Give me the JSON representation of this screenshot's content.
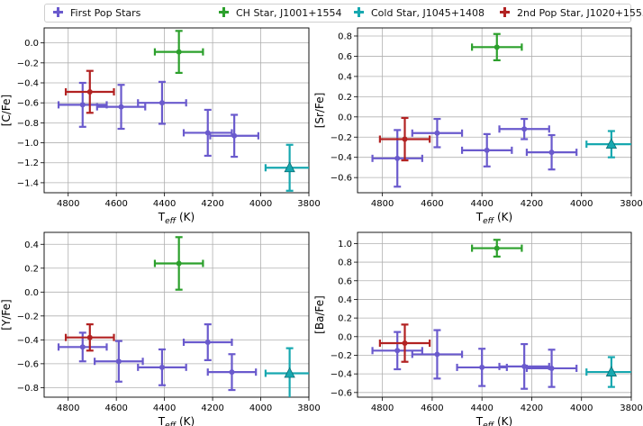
{
  "legend": [
    {
      "label": "First Pop Stars",
      "color": "#6a5acd"
    },
    {
      "label": "CH Star, J1001+1554",
      "color": "#2ca02c"
    },
    {
      "label": "Cold Star, J1045+1408",
      "color": "#17a8b0"
    },
    {
      "label": "2nd Pop Star, J1020+1555",
      "color": "#b22222"
    }
  ],
  "chart_data": [
    {
      "type": "scatter",
      "ylabel": "[C/Fe]",
      "xlabel": "T_eff (K)",
      "xlim": [
        4900,
        3800
      ],
      "ylim": [
        -1.5,
        0.15
      ],
      "xticks": [
        4800,
        4600,
        4400,
        4200,
        4000,
        3800
      ],
      "yticks": [
        0.0,
        -0.2,
        -0.4,
        -0.6,
        -0.8,
        -1.0,
        -1.2,
        -1.4
      ],
      "ytick_labels": [
        "0.0",
        "−0.2",
        "−0.4",
        "−0.6",
        "−0.8",
        "−1.0",
        "−1.2",
        "−1.4"
      ],
      "grid": true,
      "series": [
        {
          "name": "First Pop Stars",
          "color": "#6a5acd",
          "marker": "circle",
          "points": [
            {
              "x": 4740,
              "y": -0.62,
              "xerr": 100,
              "yerr": 0.22
            },
            {
              "x": 4580,
              "y": -0.64,
              "xerr": 100,
              "yerr": 0.22
            },
            {
              "x": 4410,
              "y": -0.6,
              "xerr": 100,
              "yerr": 0.21
            },
            {
              "x": 4220,
              "y": -0.9,
              "xerr": 100,
              "yerr": 0.23
            },
            {
              "x": 4110,
              "y": -0.93,
              "xerr": 100,
              "yerr": 0.21
            }
          ]
        },
        {
          "name": "CH Star, J1001+1554",
          "color": "#2ca02c",
          "marker": "circle",
          "points": [
            {
              "x": 4340,
              "y": -0.09,
              "xerr": 100,
              "yerr": 0.21
            }
          ]
        },
        {
          "name": "Cold Star, J1045+1408",
          "color": "#17a8b0",
          "marker": "triangle",
          "points": [
            {
              "x": 3880,
              "y": -1.25,
              "xerr": 100,
              "yerr": 0.23
            }
          ]
        },
        {
          "name": "2nd Pop Star, J1020+1555",
          "color": "#b22222",
          "marker": "circle",
          "points": [
            {
              "x": 4710,
              "y": -0.49,
              "xerr": 100,
              "yerr": 0.21
            }
          ]
        }
      ]
    },
    {
      "type": "scatter",
      "ylabel": "[Sr/Fe]",
      "xlabel": "T_eff (K)",
      "xlim": [
        4900,
        3800
      ],
      "ylim": [
        -0.75,
        0.88
      ],
      "xticks": [
        4800,
        4600,
        4400,
        4200,
        4000,
        3800
      ],
      "yticks": [
        0.8,
        0.6,
        0.4,
        0.2,
        0.0,
        -0.2,
        -0.4,
        -0.6
      ],
      "ytick_labels": [
        "0.8",
        "0.6",
        "0.4",
        "0.2",
        "0.0",
        "−0.2",
        "−0.4",
        "−0.6"
      ],
      "grid": true,
      "series": [
        {
          "name": "First Pop Stars",
          "color": "#6a5acd",
          "marker": "circle",
          "points": [
            {
              "x": 4740,
              "y": -0.41,
              "xerr": 100,
              "yerr": 0.28
            },
            {
              "x": 4580,
              "y": -0.16,
              "xerr": 100,
              "yerr": 0.14
            },
            {
              "x": 4380,
              "y": -0.33,
              "xerr": 100,
              "yerr": 0.16
            },
            {
              "x": 4230,
              "y": -0.12,
              "xerr": 100,
              "yerr": 0.1
            },
            {
              "x": 4120,
              "y": -0.35,
              "xerr": 100,
              "yerr": 0.17
            }
          ]
        },
        {
          "name": "CH Star, J1001+1554",
          "color": "#2ca02c",
          "marker": "circle",
          "points": [
            {
              "x": 4340,
              "y": 0.69,
              "xerr": 100,
              "yerr": 0.13
            }
          ]
        },
        {
          "name": "Cold Star, J1045+1408",
          "color": "#17a8b0",
          "marker": "triangle",
          "points": [
            {
              "x": 3880,
              "y": -0.27,
              "xerr": 100,
              "yerr": 0.13
            }
          ]
        },
        {
          "name": "2nd Pop Star, J1020+1555",
          "color": "#b22222",
          "marker": "circle",
          "points": [
            {
              "x": 4710,
              "y": -0.22,
              "xerr": 100,
              "yerr": 0.21
            }
          ]
        }
      ]
    },
    {
      "type": "scatter",
      "ylabel": "[Y/Fe]",
      "xlabel": "T_eff (K)",
      "xlim": [
        4900,
        3800
      ],
      "ylim": [
        -0.88,
        0.5
      ],
      "xticks": [
        4800,
        4600,
        4400,
        4200,
        4000,
        3800
      ],
      "yticks": [
        0.4,
        0.2,
        0.0,
        -0.2,
        -0.4,
        -0.6,
        -0.8
      ],
      "ytick_labels": [
        "0.4",
        "0.2",
        "0.0",
        "−0.2",
        "−0.4",
        "−0.6",
        "−0.8"
      ],
      "grid": true,
      "series": [
        {
          "name": "First Pop Stars",
          "color": "#6a5acd",
          "marker": "circle",
          "points": [
            {
              "x": 4740,
              "y": -0.46,
              "xerr": 100,
              "yerr": 0.12
            },
            {
              "x": 4590,
              "y": -0.58,
              "xerr": 100,
              "yerr": 0.17
            },
            {
              "x": 4410,
              "y": -0.63,
              "xerr": 100,
              "yerr": 0.15
            },
            {
              "x": 4220,
              "y": -0.42,
              "xerr": 100,
              "yerr": 0.15
            },
            {
              "x": 4120,
              "y": -0.67,
              "xerr": 100,
              "yerr": 0.15
            }
          ]
        },
        {
          "name": "CH Star, J1001+1554",
          "color": "#2ca02c",
          "marker": "circle",
          "points": [
            {
              "x": 4340,
              "y": 0.24,
              "xerr": 100,
              "yerr": 0.22
            }
          ]
        },
        {
          "name": "Cold Star, J1045+1408",
          "color": "#17a8b0",
          "marker": "triangle",
          "points": [
            {
              "x": 3880,
              "y": -0.68,
              "xerr": 100,
              "yerr": 0.21
            }
          ]
        },
        {
          "name": "2nd Pop Star, J1020+1555",
          "color": "#b22222",
          "marker": "circle",
          "points": [
            {
              "x": 4710,
              "y": -0.38,
              "xerr": 100,
              "yerr": 0.11
            }
          ]
        }
      ]
    },
    {
      "type": "scatter",
      "ylabel": "[Ba/Fe]",
      "xlabel": "T_eff (K)",
      "xlim": [
        4900,
        3800
      ],
      "ylim": [
        -0.65,
        1.12
      ],
      "xticks": [
        4800,
        4600,
        4400,
        4200,
        4000,
        3800
      ],
      "yticks": [
        1.0,
        0.8,
        0.6,
        0.4,
        0.2,
        0.0,
        -0.2,
        -0.4,
        -0.6
      ],
      "ytick_labels": [
        "1.0",
        "0.8",
        "0.6",
        "0.4",
        "0.2",
        "0.0",
        "−0.2",
        "−0.4",
        "−0.6"
      ],
      "grid": true,
      "series": [
        {
          "name": "First Pop Stars",
          "color": "#6a5acd",
          "marker": "circle",
          "points": [
            {
              "x": 4740,
              "y": -0.15,
              "xerr": 100,
              "yerr": 0.2
            },
            {
              "x": 4580,
              "y": -0.19,
              "xerr": 100,
              "yerr": 0.26
            },
            {
              "x": 4400,
              "y": -0.33,
              "xerr": 100,
              "yerr": 0.2
            },
            {
              "x": 4230,
              "y": -0.32,
              "xerr": 100,
              "yerr": 0.24
            },
            {
              "x": 4120,
              "y": -0.34,
              "xerr": 100,
              "yerr": 0.2
            }
          ]
        },
        {
          "name": "CH Star, J1001+1554",
          "color": "#2ca02c",
          "marker": "circle",
          "points": [
            {
              "x": 4340,
              "y": 0.95,
              "xerr": 100,
              "yerr": 0.09
            }
          ]
        },
        {
          "name": "Cold Star, J1045+1408",
          "color": "#17a8b0",
          "marker": "triangle",
          "points": [
            {
              "x": 3880,
              "y": -0.38,
              "xerr": 100,
              "yerr": 0.16
            }
          ]
        },
        {
          "name": "2nd Pop Star, J1020+1555",
          "color": "#b22222",
          "marker": "circle",
          "points": [
            {
              "x": 4710,
              "y": -0.07,
              "xerr": 100,
              "yerr": 0.2
            }
          ]
        }
      ]
    }
  ]
}
